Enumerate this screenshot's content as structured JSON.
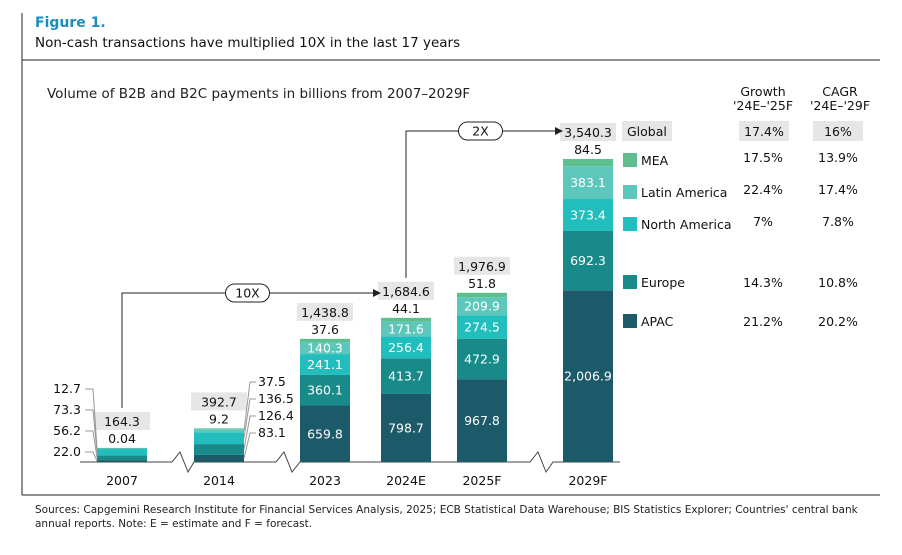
{
  "figure_label": "Figure 1.",
  "figure_title": "Non-cash transactions have multiplied 10X in the last 17 years",
  "source_note": "Sources: Capgemini Research Institute for Financial Services Analysis, 2025; ECB Statistical Data Warehouse; BIS Statistics Explorer; Countries' central bank annual reports. Note: E = estimate and F = forecast.",
  "chart_data": {
    "type": "bar",
    "stacked": true,
    "title": "Volume of B2B and B2C payments in billions from 2007–2029F",
    "categories": [
      "2007",
      "2014",
      "2023",
      "2024E",
      "2025F",
      "2029F"
    ],
    "totals": [
      "164.3",
      "392.7",
      "1,438.8",
      "1,684.6",
      "1,976.9",
      "3,540.3"
    ],
    "series": [
      {
        "name": "APAC",
        "color": "#1d5a69",
        "values": [
          22.0,
          83.1,
          659.8,
          798.7,
          967.8,
          2006.9
        ]
      },
      {
        "name": "Europe",
        "color": "#178a89",
        "values": [
          56.2,
          126.4,
          360.1,
          413.7,
          472.9,
          692.3
        ]
      },
      {
        "name": "North America",
        "color": "#22bdbd",
        "values": [
          73.3,
          136.5,
          241.1,
          256.4,
          274.5,
          373.4
        ]
      },
      {
        "name": "Latin America",
        "color": "#5ec7bb",
        "values": [
          12.7,
          37.5,
          140.3,
          171.6,
          209.9,
          383.1
        ]
      },
      {
        "name": "MEA",
        "color": "#5dbe8e",
        "values": [
          0.04,
          9.2,
          37.6,
          44.1,
          51.8,
          84.5
        ]
      }
    ],
    "axis_breaks": [
      "2007–2014",
      "2014–2023",
      "2025F–2029F"
    ],
    "annotations": [
      {
        "label": "10X",
        "from": "2007",
        "to": "2024E"
      },
      {
        "label": "2X",
        "from": "2024E",
        "to": "2029F"
      }
    ],
    "table": {
      "headers": [
        [
          "Growth",
          "'24E–'25F"
        ],
        [
          "CAGR",
          "'24E–'29F"
        ]
      ],
      "rows": [
        {
          "region": "Global",
          "growth": "17.4%",
          "cagr": "16%"
        },
        {
          "region": "MEA",
          "growth": "17.5%",
          "cagr": "13.9%"
        },
        {
          "region": "Latin America",
          "growth": "22.4%",
          "cagr": "17.4%"
        },
        {
          "region": "North America",
          "growth": "7%",
          "cagr": "7.8%"
        },
        {
          "region": "Europe",
          "growth": "14.3%",
          "cagr": "10.8%"
        },
        {
          "region": "APAC",
          "growth": "21.2%",
          "cagr": "20.2%"
        }
      ]
    },
    "grid": false,
    "legend": "right"
  }
}
